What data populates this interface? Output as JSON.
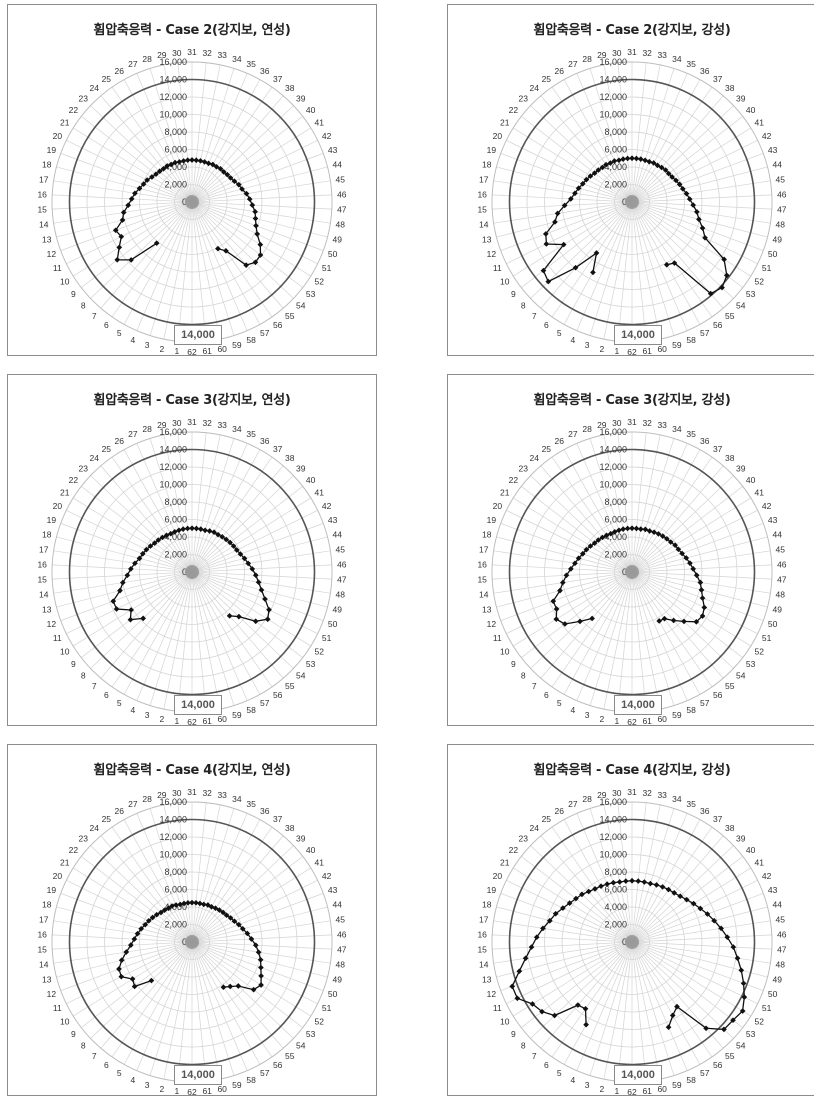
{
  "panels": [
    {
      "title": "휨압축응력 - Case 2(강지보, 연성)",
      "limit_label": "14,000"
    },
    {
      "title": "휨압축응력 - Case 2(강지보, 강성)",
      "limit_label": "14,000"
    },
    {
      "title": "휨압축응력 - Case 3(강지보, 연성)",
      "limit_label": "14,000"
    },
    {
      "title": "휨압축응력 - Case 3(강지보, 강성)",
      "limit_label": "14,000"
    },
    {
      "title": "휨압축응력 - Case 4(강지보, 연성)",
      "limit_label": "14,000"
    },
    {
      "title": "휨압축응력 - Case 4(강지보, 강성)",
      "limit_label": "14,000"
    }
  ],
  "chart_data": [
    {
      "type": "radar",
      "title": "휨압축응력 - Case 2(강지보, 연성)",
      "categories": [
        "1",
        "2",
        "3",
        "4",
        "5",
        "6",
        "7",
        "8",
        "9",
        "10",
        "11",
        "12",
        "13",
        "14",
        "15",
        "16",
        "17",
        "18",
        "19",
        "20",
        "21",
        "22",
        "23",
        "24",
        "25",
        "26",
        "27",
        "28",
        "29",
        "30",
        "31",
        "32",
        "33",
        "34",
        "35",
        "36",
        "37",
        "38",
        "39",
        "40",
        "41",
        "42",
        "43",
        "44",
        "45",
        "46",
        "47",
        "48",
        "49",
        "50",
        "51",
        "52",
        "53",
        "54",
        "55",
        "56",
        "57",
        "58",
        "59",
        "60",
        "61",
        "62"
      ],
      "radial_ticks": [
        "0",
        "2,000",
        "4,000",
        "6,000",
        "8,000",
        "10,000",
        "12,000",
        "14,000",
        "16,000"
      ],
      "rmax": 16000,
      "limit_value": 14000,
      "grid": true,
      "series": [
        {
          "values": [
            0,
            0,
            0,
            0,
            0,
            0,
            6200,
            9600,
            10800,
            9800,
            9000,
            9300,
            8200,
            7900,
            7300,
            6900,
            6600,
            6200,
            5900,
            5700,
            5400,
            5200,
            5100,
            5000,
            5000,
            4900,
            4900,
            4800,
            4800,
            4800,
            4800,
            4800,
            4800,
            4800,
            4800,
            4900,
            4900,
            5000,
            5000,
            5100,
            5200,
            5400,
            5700,
            5900,
            6300,
            6600,
            6900,
            7300,
            7500,
            7800,
            8300,
            9200,
            9900,
            10000,
            9500,
            6800,
            6100,
            0,
            0,
            0,
            0,
            0
          ]
        }
      ]
    },
    {
      "type": "radar",
      "title": "휨압축응력 - Case 2(강지보, 강성)",
      "categories": [
        "1",
        "2",
        "3",
        "4",
        "5",
        "6",
        "7",
        "8",
        "9",
        "10",
        "11",
        "12",
        "13",
        "14",
        "15",
        "16",
        "17",
        "18",
        "19",
        "20",
        "21",
        "22",
        "23",
        "24",
        "25",
        "26",
        "27",
        "28",
        "29",
        "30",
        "31",
        "32",
        "33",
        "34",
        "35",
        "36",
        "37",
        "38",
        "39",
        "40",
        "41",
        "42",
        "43",
        "44",
        "45",
        "46",
        "47",
        "48",
        "49",
        "50",
        "51",
        "52",
        "53",
        "54",
        "55",
        "56",
        "57",
        "58",
        "59",
        "60",
        "61",
        "62"
      ],
      "radial_ticks": [
        "0",
        "2,000",
        "4,000",
        "6,000",
        "8,000",
        "10,000",
        "12,000",
        "14,000",
        "16,000"
      ],
      "rmax": 16000,
      "limit_value": 14000,
      "grid": true,
      "series": [
        {
          "values": [
            0,
            0,
            0,
            0,
            9200,
            7100,
            9900,
            13200,
            12800,
            9200,
            10900,
            10500,
            9100,
            8600,
            7700,
            7000,
            6600,
            6300,
            6000,
            5800,
            5600,
            5400,
            5300,
            5200,
            5200,
            5100,
            5100,
            5000,
            5000,
            5000,
            5000,
            5000,
            5000,
            5000,
            5000,
            5100,
            5100,
            5200,
            5300,
            5300,
            5400,
            5600,
            5800,
            6000,
            6300,
            6600,
            7000,
            7500,
            7900,
            8600,
            9300,
            12400,
            13700,
            14200,
            13800,
            8500,
            8200,
            0,
            0,
            0,
            0,
            0
          ]
        }
      ]
    },
    {
      "type": "radar",
      "title": "휨압축응력 - Case 3(강지보, 연성)",
      "categories": [
        "1",
        "2",
        "3",
        "4",
        "5",
        "6",
        "7",
        "8",
        "9",
        "10",
        "11",
        "12",
        "13",
        "14",
        "15",
        "16",
        "17",
        "18",
        "19",
        "20",
        "21",
        "22",
        "23",
        "24",
        "25",
        "26",
        "27",
        "28",
        "29",
        "30",
        "31",
        "32",
        "33",
        "34",
        "35",
        "36",
        "37",
        "38",
        "39",
        "40",
        "41",
        "42",
        "43",
        "44",
        "45",
        "46",
        "47",
        "48",
        "49",
        "50",
        "51",
        "52",
        "53",
        "54",
        "55",
        "56",
        "57",
        "58",
        "59",
        "60",
        "61",
        "62"
      ],
      "radial_ticks": [
        "0",
        "2,000",
        "4,000",
        "6,000",
        "8,000",
        "10,000",
        "12,000",
        "14,000",
        "16,000"
      ],
      "rmax": 16000,
      "limit_value": 14000,
      "grid": true,
      "series": [
        {
          "values": [
            0,
            0,
            0,
            0,
            0,
            0,
            0,
            7700,
            8900,
            8200,
            9600,
            9600,
            8500,
            8000,
            7400,
            7000,
            6600,
            6200,
            6000,
            5800,
            5600,
            5400,
            5300,
            5200,
            5100,
            5000,
            5000,
            5000,
            5000,
            5000,
            5000,
            5000,
            5000,
            5000,
            5100,
            5200,
            5200,
            5300,
            5400,
            5500,
            5600,
            5700,
            5900,
            6200,
            6500,
            6900,
            7300,
            7700,
            8200,
            8900,
            9800,
            10200,
            9200,
            7400,
            6600,
            0,
            0,
            0,
            0,
            0,
            0,
            0
          ]
        }
      ]
    },
    {
      "type": "radar",
      "title": "휨압축응력 - Case 3(강지보, 강성)",
      "categories": [
        "1",
        "2",
        "3",
        "4",
        "5",
        "6",
        "7",
        "8",
        "9",
        "10",
        "11",
        "12",
        "13",
        "14",
        "15",
        "16",
        "17",
        "18",
        "19",
        "20",
        "21",
        "22",
        "23",
        "24",
        "25",
        "26",
        "27",
        "28",
        "29",
        "30",
        "31",
        "32",
        "33",
        "34",
        "35",
        "36",
        "37",
        "38",
        "39",
        "40",
        "41",
        "42",
        "43",
        "44",
        "45",
        "46",
        "47",
        "48",
        "49",
        "50",
        "51",
        "52",
        "53",
        "54",
        "55",
        "56",
        "57",
        "58",
        "59",
        "60",
        "61",
        "62"
      ],
      "radial_ticks": [
        "0",
        "2,000",
        "4,000",
        "6,000",
        "8,000",
        "10,000",
        "12,000",
        "14,000",
        "16,000"
      ],
      "rmax": 16000,
      "limit_value": 14000,
      "grid": true,
      "series": [
        {
          "values": [
            0,
            0,
            0,
            0,
            0,
            0,
            7000,
            8200,
            9700,
            10200,
            9600,
            9600,
            8500,
            8000,
            7500,
            7000,
            6600,
            6300,
            6000,
            5800,
            5600,
            5400,
            5300,
            5200,
            5100,
            5000,
            5000,
            5000,
            5000,
            5000,
            5000,
            5000,
            5000,
            5100,
            5100,
            5200,
            5300,
            5400,
            5500,
            5600,
            5800,
            5900,
            6100,
            6400,
            6700,
            7000,
            7400,
            7900,
            8200,
            8600,
            9200,
            9500,
            9300,
            8200,
            7300,
            6500,
            6400,
            0,
            0,
            0,
            0,
            0
          ]
        }
      ]
    },
    {
      "type": "radar",
      "title": "휨압축응력 - Case 4(강지보, 연성)",
      "categories": [
        "1",
        "2",
        "3",
        "4",
        "5",
        "6",
        "7",
        "8",
        "9",
        "10",
        "11",
        "12",
        "13",
        "14",
        "15",
        "16",
        "17",
        "18",
        "19",
        "20",
        "21",
        "22",
        "23",
        "24",
        "25",
        "26",
        "27",
        "28",
        "29",
        "30",
        "31",
        "32",
        "33",
        "34",
        "35",
        "36",
        "37",
        "38",
        "39",
        "40",
        "41",
        "42",
        "43",
        "44",
        "45",
        "46",
        "47",
        "48",
        "49",
        "50",
        "51",
        "52",
        "53",
        "54",
        "55",
        "56",
        "57",
        "58",
        "59",
        "60",
        "61",
        "62"
      ],
      "radial_ticks": [
        "0",
        "2,000",
        "4,000",
        "6,000",
        "8,000",
        "10,000",
        "12,000",
        "14,000",
        "16,000"
      ],
      "rmax": 16000,
      "limit_value": 14000,
      "grid": true,
      "series": [
        {
          "values": [
            0,
            0,
            0,
            0,
            0,
            0,
            0,
            6400,
            8300,
            8000,
            9000,
            8900,
            8300,
            7600,
            7000,
            6600,
            6300,
            6000,
            5700,
            5500,
            5300,
            5100,
            4900,
            4800,
            4700,
            4700,
            4600,
            4500,
            4500,
            4500,
            4500,
            4500,
            4500,
            4500,
            4600,
            4600,
            4700,
            4800,
            4900,
            5000,
            5200,
            5400,
            5700,
            6000,
            6400,
            6800,
            7300,
            7700,
            8100,
            8400,
            8800,
            9300,
            8900,
            7300,
            6700,
            6300,
            0,
            0,
            0,
            0,
            0,
            0
          ]
        }
      ]
    },
    {
      "type": "radar",
      "title": "휨압축응력 - Case 4(강지보, 강성)",
      "categories": [
        "1",
        "2",
        "3",
        "4",
        "5",
        "6",
        "7",
        "8",
        "9",
        "10",
        "11",
        "12",
        "13",
        "14",
        "15",
        "16",
        "17",
        "18",
        "19",
        "20",
        "21",
        "22",
        "23",
        "24",
        "25",
        "26",
        "27",
        "28",
        "29",
        "30",
        "31",
        "32",
        "33",
        "34",
        "35",
        "36",
        "37",
        "38",
        "39",
        "40",
        "41",
        "42",
        "43",
        "44",
        "45",
        "46",
        "47",
        "48",
        "49",
        "50",
        "51",
        "52",
        "53",
        "54",
        "55",
        "56",
        "57",
        "58",
        "59",
        "60",
        "61",
        "62"
      ],
      "radial_ticks": [
        "0",
        "2,000",
        "4,000",
        "6,000",
        "8,000",
        "10,000",
        "12,000",
        "14,000",
        "16,000"
      ],
      "rmax": 16000,
      "limit_value": 14000,
      "grid": true,
      "series": [
        {
          "values": [
            0,
            0,
            0,
            0,
            10800,
            9300,
            9500,
            12200,
            13000,
            13400,
            14600,
            14600,
            13300,
            12300,
            11500,
            10900,
            10300,
            9700,
            9300,
            8800,
            8400,
            8100,
            7900,
            7600,
            7400,
            7300,
            7200,
            7100,
            7000,
            7000,
            7000,
            7000,
            7000,
            7000,
            7100,
            7200,
            7300,
            7400,
            7600,
            7900,
            8300,
            8700,
            9200,
            9700,
            10300,
            10900,
            11600,
            12200,
            12900,
            13600,
            14300,
            14900,
            14600,
            14500,
            13000,
            9000,
            9600,
            10600,
            0,
            0,
            0,
            0
          ]
        }
      ]
    }
  ]
}
